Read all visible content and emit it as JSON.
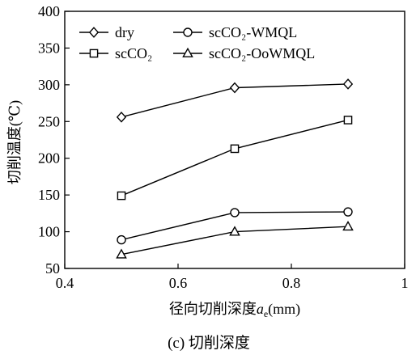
{
  "chart_data": {
    "type": "line",
    "x": [
      0.5,
      0.7,
      0.9
    ],
    "series": [
      {
        "name": "dry",
        "marker": "diamond",
        "values": [
          256,
          296,
          301
        ]
      },
      {
        "name": "scCO₂",
        "marker": "square",
        "values": [
          149,
          213,
          252
        ]
      },
      {
        "name": "scCO₂-WMQL",
        "marker": "circle",
        "values": [
          89,
          126,
          127
        ]
      },
      {
        "name": "scCO₂-OoWMQL",
        "marker": "triangle",
        "values": [
          69,
          100,
          107
        ]
      }
    ],
    "xlim": [
      0.4,
      1.0
    ],
    "ylim": [
      50,
      400
    ],
    "xticks": [
      "0.4",
      "0.6",
      "0.8",
      "1"
    ],
    "yticks": [
      "50",
      "100",
      "150",
      "200",
      "250",
      "300",
      "350",
      "400"
    ],
    "xlabel_main": "径向切削深度",
    "xlabel_var": "a",
    "xlabel_sub": "e",
    "xlabel_unit": "(mm)",
    "ylabel": "切削温度(℃)",
    "caption": "(c) 切削深度",
    "legend_position": "top",
    "grid": false,
    "colors": {
      "line": "#000000",
      "marker_fill": "#ffffff"
    }
  }
}
